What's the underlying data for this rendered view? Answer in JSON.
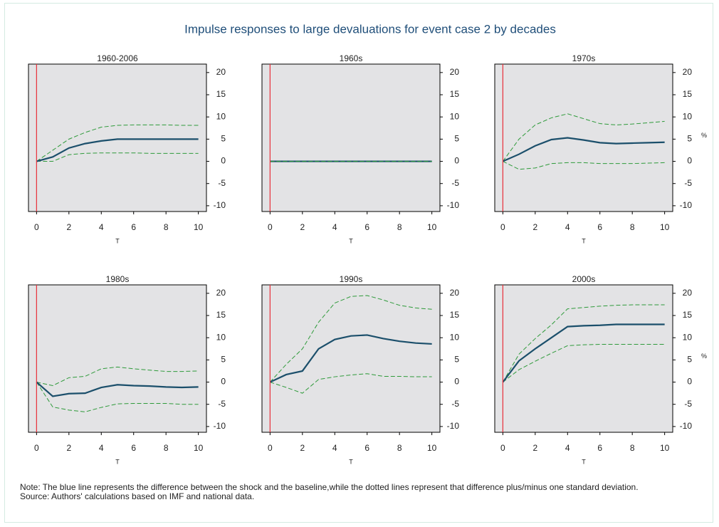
{
  "title": "Impulse responses to large devaluations for event case 2 by decades",
  "notes": [
    "Note: The blue line represents the difference between the shock and the baseline,while the dotted lines represent that difference plus/minus one standard deviation.",
    "Source: Authors' calculations based on IMF and national data."
  ],
  "chart_data": [
    {
      "type": "line",
      "title": "1960-2006",
      "xlabel": "T",
      "x": [
        0,
        1,
        2,
        3,
        4,
        5,
        6,
        7,
        8,
        9,
        10
      ],
      "xlim": [
        -0.5,
        10.5
      ],
      "xticks": [
        0,
        2,
        4,
        6,
        8,
        10
      ],
      "ylim": [
        -11.3,
        21.9
      ],
      "yticks": [
        -10,
        -5,
        0,
        5,
        10,
        15,
        20
      ],
      "vline": 0,
      "vline_color": "#e8303a",
      "series": [
        {
          "color": "#2e9a3a",
          "linestyle": "dashed",
          "values": [
            0,
            2.5,
            5,
            6.5,
            7.7,
            8.1,
            8.2,
            8.2,
            8.2,
            8.1,
            8.1
          ]
        },
        {
          "color": "#2e9a3a",
          "linestyle": "dashed",
          "values": [
            0,
            0,
            1.5,
            1.8,
            1.9,
            1.9,
            1.9,
            1.8,
            1.8,
            1.8,
            1.8
          ]
        },
        {
          "color": "#1b4f6b",
          "linestyle": "solid",
          "values": [
            0,
            1,
            3,
            4,
            4.6,
            5,
            5,
            5,
            5,
            5,
            5
          ]
        }
      ]
    },
    {
      "type": "line",
      "title": "1960s",
      "xlabel": "T",
      "x": [
        0,
        1,
        2,
        3,
        4,
        5,
        6,
        7,
        8,
        9,
        10
      ],
      "xlim": [
        -0.5,
        10.5
      ],
      "xticks": [
        0,
        2,
        4,
        6,
        8,
        10
      ],
      "ylim": [
        -11.3,
        21.9
      ],
      "yticks": [
        -10,
        -5,
        0,
        5,
        10,
        15,
        20
      ],
      "vline": 0,
      "vline_color": "#e8303a",
      "series": [
        {
          "color": "#1b4f6b",
          "linestyle": "solid",
          "values": [
            0,
            0,
            0,
            0,
            0,
            0,
            0,
            0,
            0,
            0,
            0
          ]
        },
        {
          "color": "#2e9a3a",
          "linestyle": "dashed",
          "values": [
            0,
            0,
            0,
            0,
            0,
            0,
            0,
            0,
            0,
            0,
            0
          ]
        },
        {
          "color": "#2e9a3a",
          "linestyle": "dashed",
          "values": [
            0,
            0,
            0,
            0,
            0,
            0,
            0,
            0,
            0,
            0,
            0
          ]
        }
      ]
    },
    {
      "type": "line",
      "title": "1970s",
      "xlabel": "T",
      "ylabel": "%",
      "x": [
        0,
        1,
        2,
        3,
        4,
        5,
        6,
        7,
        8,
        9,
        10
      ],
      "xlim": [
        -0.5,
        10.5
      ],
      "xticks": [
        0,
        2,
        4,
        6,
        8,
        10
      ],
      "ylim": [
        -11.3,
        21.9
      ],
      "yticks": [
        -10,
        -5,
        0,
        5,
        10,
        15,
        20
      ],
      "vline": 0,
      "vline_color": "#e8303a",
      "series": [
        {
          "color": "#2e9a3a",
          "linestyle": "dashed",
          "values": [
            0,
            5,
            8.2,
            9.8,
            10.7,
            9.6,
            8.5,
            8.2,
            8.4,
            8.7,
            9
          ]
        },
        {
          "color": "#2e9a3a",
          "linestyle": "dashed",
          "values": [
            0,
            -1.8,
            -1.5,
            -0.5,
            -0.3,
            -0.3,
            -0.5,
            -0.5,
            -0.5,
            -0.4,
            -0.3
          ]
        },
        {
          "color": "#1b4f6b",
          "linestyle": "solid",
          "values": [
            0,
            1.6,
            3.5,
            4.9,
            5.3,
            4.8,
            4.2,
            4,
            4.1,
            4.2,
            4.3
          ]
        }
      ]
    },
    {
      "type": "line",
      "title": "1980s",
      "xlabel": "T",
      "x": [
        0,
        1,
        2,
        3,
        4,
        5,
        6,
        7,
        8,
        9,
        10
      ],
      "xlim": [
        -0.5,
        10.5
      ],
      "xticks": [
        0,
        2,
        4,
        6,
        8,
        10
      ],
      "ylim": [
        -11.3,
        21.9
      ],
      "yticks": [
        -10,
        -5,
        0,
        5,
        10,
        15,
        20
      ],
      "vline": 0,
      "vline_color": "#e8303a",
      "series": [
        {
          "color": "#2e9a3a",
          "linestyle": "dashed",
          "values": [
            0,
            -0.8,
            1,
            1.3,
            3,
            3.4,
            3,
            2.7,
            2.4,
            2.4,
            2.5
          ]
        },
        {
          "color": "#2e9a3a",
          "linestyle": "dashed",
          "values": [
            0,
            -5.6,
            -6.3,
            -6.7,
            -5.7,
            -4.9,
            -4.8,
            -4.8,
            -4.8,
            -5,
            -5
          ]
        },
        {
          "color": "#1b4f6b",
          "linestyle": "solid",
          "values": [
            0,
            -3.2,
            -2.6,
            -2.5,
            -1.2,
            -0.6,
            -0.8,
            -0.9,
            -1.1,
            -1.2,
            -1.1
          ]
        }
      ]
    },
    {
      "type": "line",
      "title": "1990s",
      "xlabel": "T",
      "x": [
        0,
        1,
        2,
        3,
        4,
        5,
        6,
        7,
        8,
        9,
        10
      ],
      "xlim": [
        -0.5,
        10.5
      ],
      "xticks": [
        0,
        2,
        4,
        6,
        8,
        10
      ],
      "ylim": [
        -11.3,
        21.9
      ],
      "yticks": [
        -10,
        -5,
        0,
        5,
        10,
        15,
        20
      ],
      "vline": 0,
      "vline_color": "#e8303a",
      "series": [
        {
          "color": "#2e9a3a",
          "linestyle": "dashed",
          "values": [
            0,
            4,
            7.5,
            13.5,
            17.8,
            19.3,
            19.5,
            18.5,
            17.3,
            16.7,
            16.4
          ]
        },
        {
          "color": "#2e9a3a",
          "linestyle": "dashed",
          "values": [
            0,
            -1.2,
            -2.5,
            0.6,
            1.2,
            1.6,
            1.9,
            1.3,
            1.3,
            1.2,
            1.2
          ]
        },
        {
          "color": "#1b4f6b",
          "linestyle": "solid",
          "values": [
            0,
            1.7,
            2.5,
            7.5,
            9.6,
            10.4,
            10.6,
            9.8,
            9.2,
            8.8,
            8.6
          ]
        }
      ]
    },
    {
      "type": "line",
      "title": "2000s",
      "xlabel": "T",
      "ylabel": "%",
      "x": [
        0,
        1,
        2,
        3,
        4,
        5,
        6,
        7,
        8,
        9,
        10
      ],
      "xlim": [
        -0.5,
        10.5
      ],
      "xticks": [
        0,
        2,
        4,
        6,
        8,
        10
      ],
      "ylim": [
        -11.3,
        21.9
      ],
      "yticks": [
        -10,
        -5,
        0,
        5,
        10,
        15,
        20
      ],
      "vline": 0,
      "vline_color": "#e8303a",
      "series": [
        {
          "color": "#2e9a3a",
          "linestyle": "dashed",
          "values": [
            0,
            6.3,
            9.8,
            12.9,
            16.5,
            16.8,
            17.1,
            17.3,
            17.4,
            17.4,
            17.4
          ]
        },
        {
          "color": "#2e9a3a",
          "linestyle": "dashed",
          "values": [
            0,
            2.8,
            4.7,
            6.5,
            8.2,
            8.4,
            8.5,
            8.5,
            8.5,
            8.5,
            8.5
          ]
        },
        {
          "color": "#1b4f6b",
          "linestyle": "solid",
          "values": [
            0,
            4.8,
            7.5,
            10,
            12.5,
            12.7,
            12.8,
            13,
            13,
            13,
            13
          ]
        }
      ]
    }
  ]
}
